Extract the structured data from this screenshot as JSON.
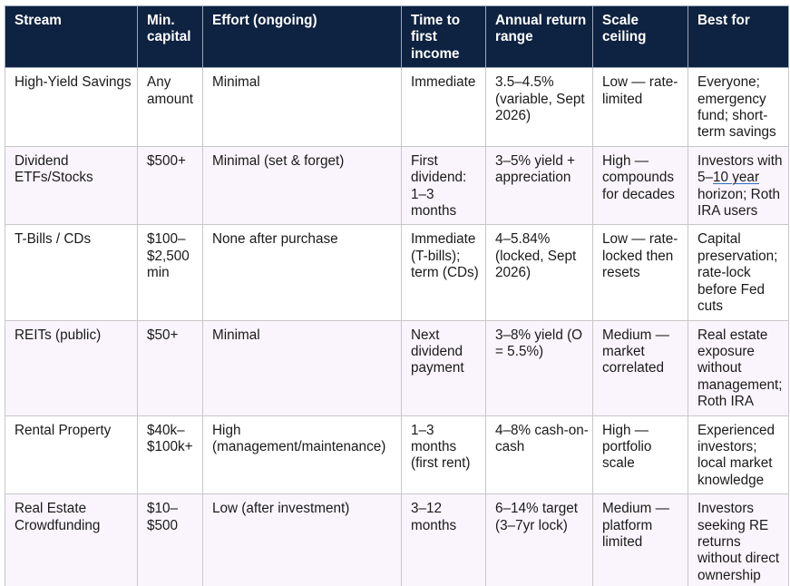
{
  "table": {
    "headers": [
      "Stream",
      "Min. capital",
      "Effort (ongoing)",
      "Time to first income",
      "Annual return range",
      "Scale ceiling",
      "Best for"
    ],
    "rows": [
      {
        "stream": "High-Yield Savings",
        "min_capital": "Any amount",
        "effort": "Minimal",
        "time_to_income": "Immediate",
        "return_range": "3.5–4.5% (variable, Sept 2026)",
        "scale_ceiling": "Low — rate-limited",
        "best_for": "Everyone; emergency fund; short-term savings"
      },
      {
        "stream": "Dividend ETFs/Stocks",
        "min_capital": "$500+",
        "effort": "Minimal (set & forget)",
        "time_to_income": "First dividend: 1–3 months",
        "return_range": "3–5% yield + appreciation",
        "scale_ceiling": "High — compounds for decades",
        "best_for_prefix": "Investors with 5–",
        "best_for_underlined": "10 year",
        "best_for_suffix": " horizon; Roth IRA users"
      },
      {
        "stream": "T-Bills / CDs",
        "min_capital": "$100–$2,500 min",
        "effort": "None after purchase",
        "time_to_income": "Immediate (T-bills); term (CDs)",
        "return_range": "4–5.84% (locked, Sept 2026)",
        "scale_ceiling": "Low — rate-locked then resets",
        "best_for": "Capital preservation; rate-lock before Fed cuts"
      },
      {
        "stream": "REITs (public)",
        "min_capital": "$50+",
        "effort": "Minimal",
        "time_to_income": "Next dividend payment",
        "return_range": "3–8% yield (O = 5.5%)",
        "scale_ceiling": "Medium — market correlated",
        "best_for": "Real estate exposure without management; Roth IRA"
      },
      {
        "stream": "Rental Property",
        "min_capital": "$40k–$100k+",
        "effort": "High (management/maintenance)",
        "time_to_income": "1–3 months (first rent)",
        "return_range": "4–8% cash-on-cash",
        "scale_ceiling": "High — portfolio scale",
        "best_for": "Experienced investors; local market knowledge"
      },
      {
        "stream": "Real Estate Crowdfunding",
        "min_capital": "$10–$500",
        "effort": "Low (after investment)",
        "time_to_income": "3–12 months",
        "return_range": "6–14% target (3–7yr lock)",
        "scale_ceiling": "Medium — platform limited",
        "best_for": "Investors seeking RE returns without direct ownership"
      }
    ]
  }
}
